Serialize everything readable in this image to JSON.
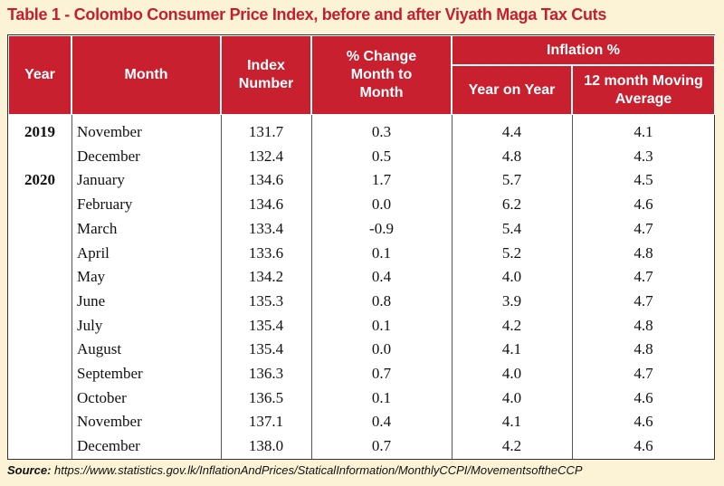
{
  "title": "Table 1 - Colombo Consumer Price Index, before and after Viyath Maga Tax Cuts",
  "table": {
    "headers": {
      "year": "Year",
      "month": "Month",
      "index": "Index Number",
      "change": "% Change Month to Month",
      "inflation": "Inflation %",
      "yoy": "Year on Year",
      "average": "12 month Moving Average"
    },
    "rows": [
      {
        "year": "2019",
        "month": "November",
        "index": "131.7",
        "change": "0.3",
        "yoy": "4.4",
        "average": "4.1"
      },
      {
        "month": "December",
        "index": "132.4",
        "change": "0.5",
        "yoy": "4.8",
        "average": "4.3"
      },
      {
        "year": "2020",
        "month": "January",
        "index": "134.6",
        "change": "1.7",
        "yoy": "5.7",
        "average": "4.5"
      },
      {
        "month": "February",
        "index": "134.6",
        "change": "0.0",
        "yoy": "6.2",
        "average": "4.6"
      },
      {
        "month": "March",
        "index": "133.4",
        "change": "-0.9",
        "yoy": "5.4",
        "average": "4.7"
      },
      {
        "month": "April",
        "index": "133.6",
        "change": "0.1",
        "yoy": "5.2",
        "average": "4.8"
      },
      {
        "month": "May",
        "index": "134.2",
        "change": "0.4",
        "yoy": "4.0",
        "average": "4.7"
      },
      {
        "month": "June",
        "index": "135.3",
        "change": "0.8",
        "yoy": "3.9",
        "average": "4.7"
      },
      {
        "month": "July",
        "index": "135.4",
        "change": "0.1",
        "yoy": "4.2",
        "average": "4.8"
      },
      {
        "month": "August",
        "index": "135.4",
        "change": "0.0",
        "yoy": "4.1",
        "average": "4.8"
      },
      {
        "month": "September",
        "index": "136.3",
        "change": "0.7",
        "yoy": "4.0",
        "average": "4.7"
      },
      {
        "month": "October",
        "index": "136.5",
        "change": "0.1",
        "yoy": "4.0",
        "average": "4.6"
      },
      {
        "month": "November",
        "index": "137.1",
        "change": "0.4",
        "yoy": "4.1",
        "average": "4.6"
      },
      {
        "month": "December",
        "index": "138.0",
        "change": "0.7",
        "yoy": "4.2",
        "average": "4.6"
      }
    ]
  },
  "source": {
    "label": "Source:",
    "text": "https://www.statistics.gov.lk/InflationAndPrices/StaticalInformation/MonthlyCCPI/MovementsoftheCCP"
  }
}
